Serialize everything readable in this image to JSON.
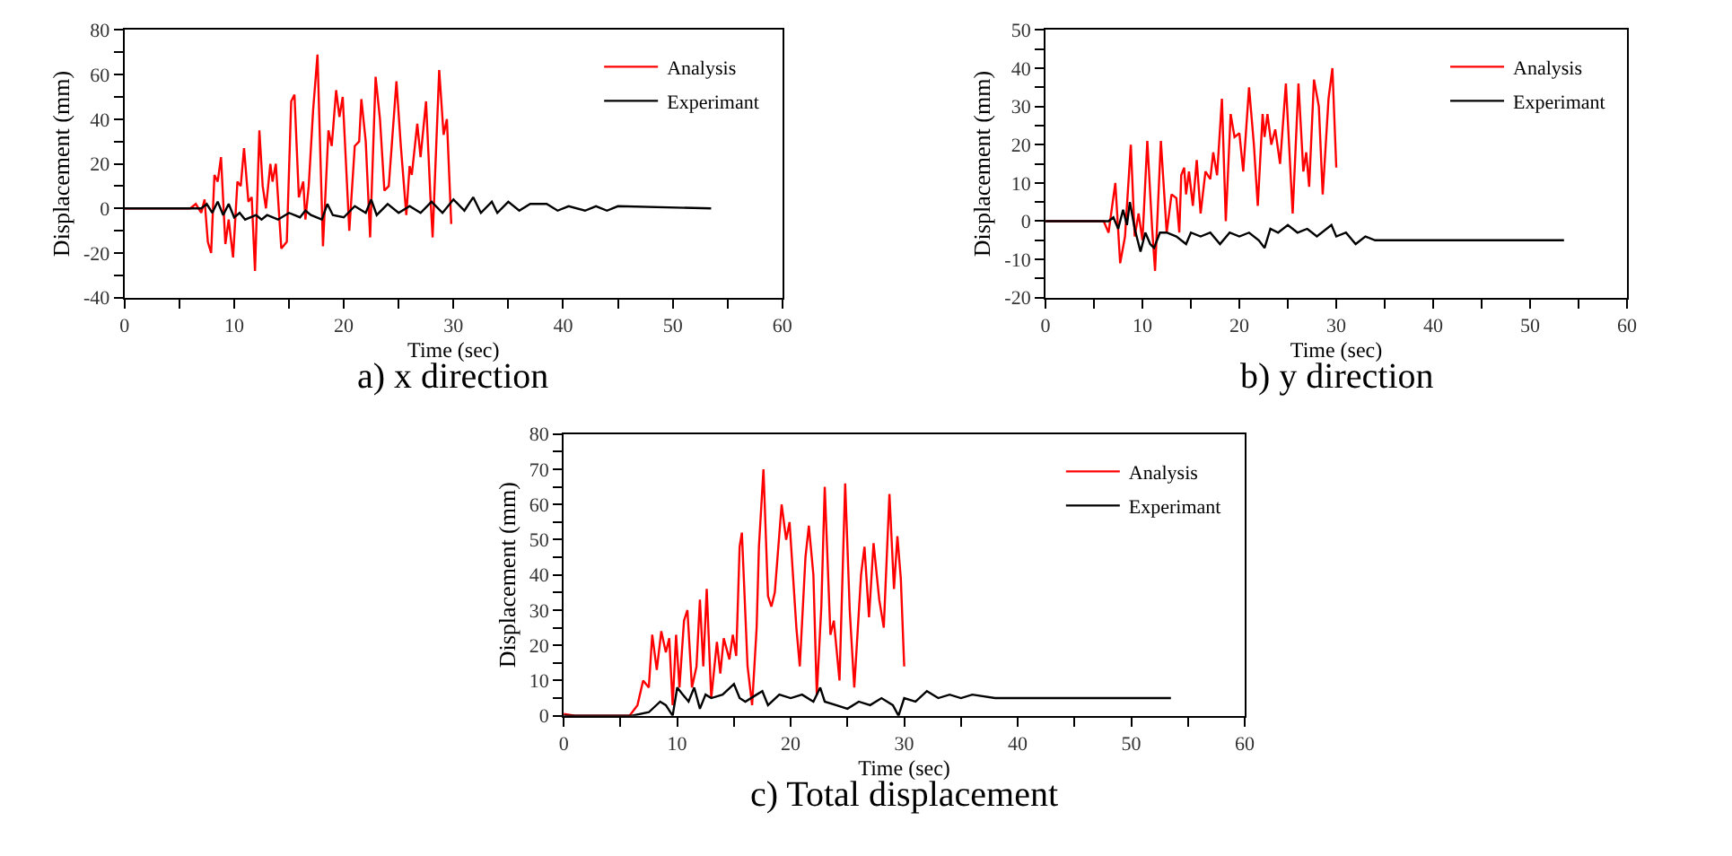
{
  "chart_data": [
    {
      "type": "line",
      "title": "a) x direction",
      "xlabel": "Time (sec)",
      "ylabel": "Displacement (mm)",
      "xlim": [
        0,
        60
      ],
      "xticks": [
        0,
        10,
        20,
        30,
        40,
        50,
        60
      ],
      "ylim": [
        -40,
        80
      ],
      "yticks": [
        -40,
        -20,
        0,
        20,
        40,
        60,
        80
      ],
      "grid": false,
      "legend": "top right",
      "line_style": "solid",
      "marker": "none",
      "series": [
        {
          "name": "Analysis",
          "color": "#ff0000",
          "x": [
            0,
            6,
            6.5,
            7,
            7.3,
            7.6,
            7.9,
            8.2,
            8.5,
            8.8,
            9.2,
            9.5,
            9.9,
            10.3,
            10.6,
            10.9,
            11.3,
            11.6,
            11.9,
            12.3,
            12.6,
            12.9,
            13.3,
            13.5,
            13.8,
            14.3,
            14.8,
            15.2,
            15.5,
            15.9,
            16.3,
            16.5,
            16.8,
            17.2,
            17.6,
            18.1,
            18.6,
            18.9,
            19.3,
            19.6,
            19.9,
            20.5,
            21,
            21.4,
            21.6,
            22,
            22.4,
            22.9,
            23.3,
            23.7,
            24.1,
            24.8,
            25.2,
            25.7,
            26,
            26.2,
            26.7,
            27,
            27.5,
            27.9,
            28.1,
            28.7,
            29.1,
            29.4,
            29.8
          ],
          "values": [
            0,
            0,
            2,
            -2,
            4,
            -15,
            -20,
            15,
            12,
            23,
            -16,
            -5,
            -22,
            12,
            10,
            27,
            3,
            5,
            -28,
            35,
            10,
            0,
            20,
            12,
            20,
            -18,
            -15,
            48,
            51,
            5,
            12,
            -5,
            10,
            44,
            69,
            -17,
            35,
            28,
            53,
            41,
            50,
            -10,
            28,
            30,
            49,
            30,
            -13,
            59,
            40,
            8,
            10,
            57,
            28,
            -3,
            19,
            15,
            38,
            23,
            48,
            5,
            -13,
            62,
            33,
            40,
            -7
          ]
        },
        {
          "name": "Experimant",
          "color": "#000000",
          "x": [
            0,
            7,
            7.5,
            8,
            8.5,
            9,
            9.5,
            10,
            10.5,
            11,
            12,
            12.5,
            13,
            14,
            15,
            16,
            16.5,
            17,
            18,
            18.5,
            19,
            20,
            21,
            22,
            22.5,
            23,
            24,
            25,
            26,
            27,
            28,
            29,
            30,
            31,
            31.8,
            32.5,
            33.5,
            34,
            35,
            36,
            37,
            38.5,
            39.5,
            40.5,
            42,
            43,
            44,
            45,
            53.5
          ],
          "values": [
            0,
            0,
            2,
            -2,
            3,
            -3,
            2,
            -4,
            -2,
            -5,
            -3,
            -5,
            -3,
            -5,
            -2,
            -4,
            -1,
            -3,
            -5,
            2,
            -3,
            -4,
            1,
            -2,
            4,
            -3,
            2,
            -2,
            1,
            -2,
            3,
            -2,
            4,
            -1,
            5,
            -2,
            3,
            -2,
            3,
            -1,
            2,
            2,
            -1,
            1,
            -1,
            1,
            -1,
            1,
            0
          ]
        }
      ]
    },
    {
      "type": "line",
      "title": "b) y direction",
      "xlabel": "Time (sec)",
      "ylabel": "Displacement (mm)",
      "xlim": [
        0,
        60
      ],
      "xticks": [
        0,
        10,
        20,
        30,
        40,
        50,
        60
      ],
      "ylim": [
        -20,
        50
      ],
      "yticks": [
        -20,
        -10,
        0,
        10,
        20,
        30,
        40,
        50
      ],
      "grid": false,
      "legend": "top right",
      "line_style": "solid",
      "marker": "none",
      "series": [
        {
          "name": "Analysis",
          "color": "#ff0000",
          "x": [
            0,
            6,
            6.5,
            7.2,
            7.7,
            8.2,
            8.8,
            9.2,
            9.6,
            10,
            10.5,
            11,
            11.3,
            11.9,
            12.5,
            13,
            13.5,
            13.8,
            14,
            14.3,
            14.5,
            14.8,
            15.2,
            15.6,
            16,
            16.5,
            17,
            17.3,
            17.7,
            18.2,
            18.6,
            19.1,
            19.5,
            20,
            20.4,
            21,
            21.5,
            21.9,
            22.4,
            22.6,
            22.9,
            23.3,
            23.7,
            24.2,
            24.8,
            25.5,
            26.1,
            26.6,
            26.9,
            27.2,
            27.7,
            28.2,
            28.6,
            29.2,
            29.6,
            30
          ],
          "values": [
            0,
            0,
            -3,
            10,
            -11,
            -4,
            20,
            -4,
            2,
            -5,
            21,
            -2,
            -13,
            21,
            -3,
            7,
            6,
            -3,
            12,
            14,
            7,
            13,
            4,
            16,
            2,
            13,
            11,
            18,
            12,
            32,
            0,
            28,
            22,
            23,
            13,
            35,
            20,
            4,
            28,
            22,
            28,
            20,
            24,
            15,
            36,
            2,
            36,
            13,
            18,
            9,
            37,
            30,
            7,
            32,
            40,
            14
          ]
        },
        {
          "name": "Experimant",
          "color": "#000000",
          "x": [
            0,
            6.5,
            7,
            7.5,
            8,
            8.4,
            8.7,
            9.2,
            9.8,
            10.3,
            10.8,
            11.2,
            11.8,
            12.5,
            13.5,
            14.5,
            15,
            16,
            17,
            18,
            19,
            20,
            21,
            22,
            22.6,
            23.2,
            24,
            25,
            26,
            27,
            28,
            29.5,
            30,
            31,
            32,
            33,
            34,
            36,
            40,
            45,
            53.5
          ],
          "values": [
            0,
            0,
            1,
            -2,
            3,
            -1,
            5,
            -2,
            -8,
            -3,
            -6,
            -7,
            -3,
            -3,
            -4,
            -6,
            -3,
            -4,
            -3,
            -6,
            -3,
            -4,
            -3,
            -5,
            -7,
            -2,
            -3,
            -1,
            -3,
            -2,
            -4,
            -1,
            -4,
            -3,
            -6,
            -4,
            -5,
            -5,
            -5,
            -5,
            -5
          ]
        }
      ]
    },
    {
      "type": "line",
      "title": "c) Total displacement",
      "xlabel": "Time (sec)",
      "ylabel": "Displacement (mm)",
      "xlim": [
        0,
        60
      ],
      "xticks": [
        0,
        10,
        20,
        30,
        40,
        50,
        60
      ],
      "ylim": [
        0,
        80
      ],
      "yticks": [
        0,
        10,
        20,
        30,
        40,
        50,
        60,
        70,
        80
      ],
      "grid": false,
      "legend": "top right",
      "line_style": "solid",
      "marker": "none",
      "series": [
        {
          "name": "Analysis",
          "color": "#ff0000",
          "x": [
            0,
            1,
            5.8,
            6.5,
            7,
            7.5,
            7.8,
            8.2,
            8.6,
            9,
            9.3,
            9.6,
            9.9,
            10.2,
            10.6,
            10.9,
            11.3,
            11.7,
            12,
            12.3,
            12.6,
            13,
            13.5,
            13.8,
            14.1,
            14.6,
            14.9,
            15.2,
            15.5,
            15.7,
            16.2,
            16.6,
            17,
            17.2,
            17.6,
            18,
            18.3,
            18.6,
            19.2,
            19.6,
            19.9,
            20.5,
            20.8,
            21.3,
            21.6,
            22,
            22.3,
            22.7,
            23,
            23.5,
            23.8,
            24.3,
            24.8,
            25.2,
            25.6,
            26.2,
            26.5,
            26.9,
            27.3,
            27.8,
            28.2,
            28.7,
            29.1,
            29.4,
            29.7,
            30
          ],
          "values": [
            0.5,
            0,
            0,
            3,
            10,
            8,
            23,
            13,
            24,
            18,
            22,
            3,
            23,
            8,
            27,
            30,
            8,
            14,
            33,
            14,
            36,
            5,
            21,
            12,
            22,
            16,
            23,
            17,
            48,
            52,
            14,
            3,
            25,
            48,
            70,
            34,
            31,
            35,
            60,
            50,
            55,
            25,
            14,
            45,
            54,
            40,
            6,
            31,
            65,
            23,
            27,
            10,
            66,
            30,
            8,
            40,
            48,
            28,
            49,
            33,
            25,
            63,
            36,
            51,
            39,
            14
          ]
        },
        {
          "name": "Experimant",
          "color": "#000000",
          "x": [
            0,
            6,
            7.5,
            8.5,
            9,
            9.6,
            10,
            10.5,
            11,
            11.5,
            12,
            12.5,
            13,
            14,
            15,
            15.5,
            16,
            17,
            17.5,
            18,
            19,
            20,
            21,
            22,
            22.6,
            23,
            24,
            25,
            26,
            27,
            28,
            29,
            29.5,
            30,
            31,
            32,
            33,
            34,
            35,
            36,
            38,
            40,
            45,
            53.5
          ],
          "values": [
            0,
            0,
            1,
            4,
            3,
            0,
            8,
            6,
            4,
            8,
            2,
            6,
            5,
            6,
            9,
            5,
            4,
            6,
            7,
            3,
            6,
            5,
            6,
            4,
            8,
            4,
            3,
            2,
            4,
            3,
            5,
            3,
            0,
            5,
            4,
            7,
            5,
            6,
            5,
            6,
            5,
            5,
            5,
            5
          ]
        }
      ]
    }
  ]
}
